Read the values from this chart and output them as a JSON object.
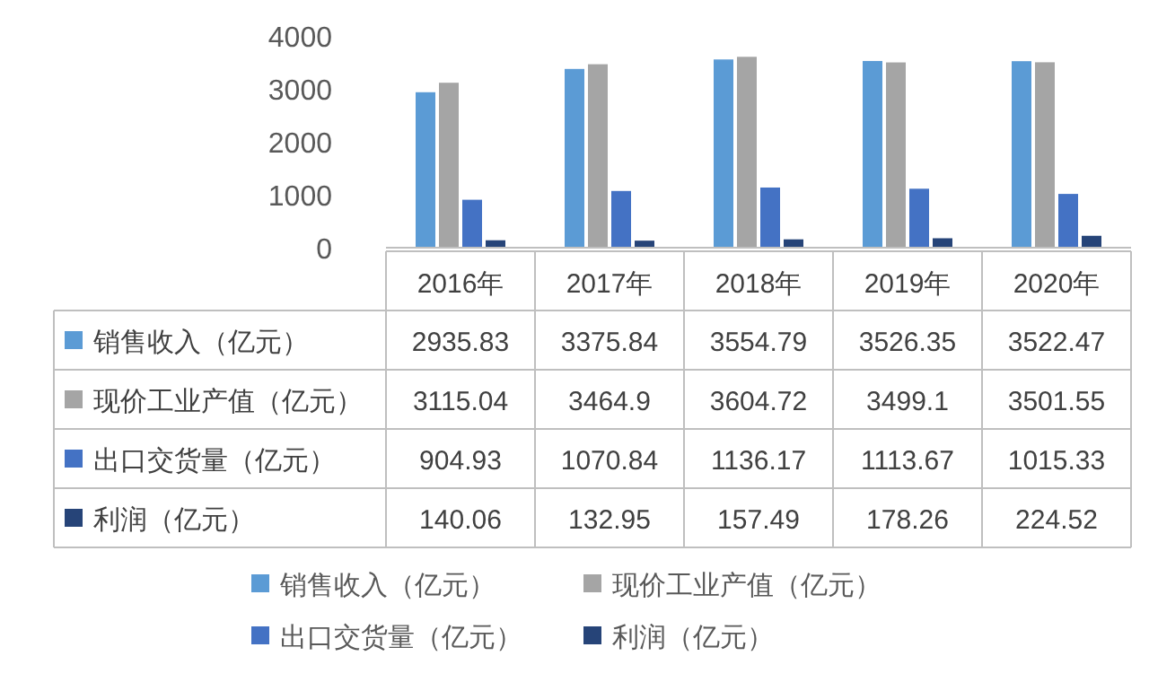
{
  "chart_data": {
    "type": "bar",
    "categories": [
      "2016年",
      "2017年",
      "2018年",
      "2019年",
      "2020年"
    ],
    "series": [
      {
        "name": "销售收入（亿元）",
        "color": "#5b9bd5",
        "values": [
          2935.83,
          3375.84,
          3554.79,
          3526.35,
          3522.47
        ]
      },
      {
        "name": "现价工业产值（亿元）",
        "color": "#a5a5a5",
        "values": [
          3115.04,
          3464.9,
          3604.72,
          3499.1,
          3501.55
        ]
      },
      {
        "name": "出口交货量（亿元）",
        "color": "#4472c4",
        "values": [
          904.93,
          1070.84,
          1136.17,
          1113.67,
          1015.33
        ]
      },
      {
        "name": "利润（亿元）",
        "color": "#264478",
        "values": [
          140.06,
          132.95,
          157.49,
          178.26,
          224.52
        ]
      }
    ],
    "ylim": [
      0,
      4000
    ],
    "yticks": [
      0,
      1000,
      2000,
      3000,
      4000
    ],
    "data_labels": true,
    "legend": "bottom"
  }
}
